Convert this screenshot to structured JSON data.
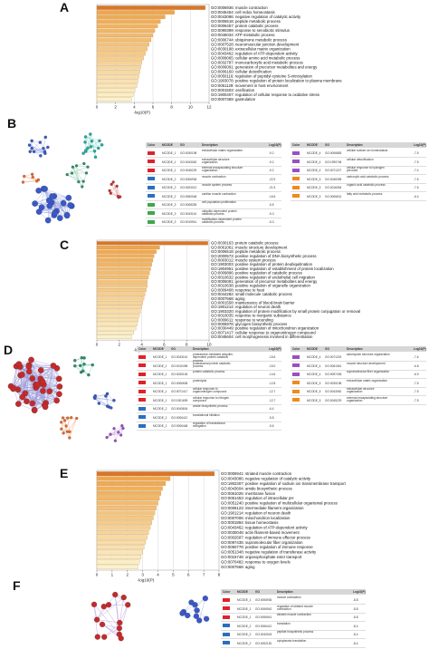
{
  "panels": {
    "A": {
      "letter": "A",
      "chart_data": {
        "type": "bar",
        "orientation": "horizontal",
        "xlabel": "-log10(P)",
        "xlim": [
          0,
          12
        ],
        "xticks": [
          0,
          2,
          4,
          6,
          8,
          10,
          12
        ],
        "categories": [
          "GO:0006936: muscle contraction",
          "GO:0045454: cell redox homeostasis",
          "GO:0043086: negative regulation of catalytic activity",
          "GO:0006518: peptide metabolic process",
          "GO:0006457: protein catabolic process",
          "GO:0090399: response to senobiotic stimulus",
          "GO:0046034: ATP metabolic process",
          "GO:0006744: ubiquinone metabolic process",
          "GO:0007528: neuromuscular junction development",
          "GO:0030198: extracellular matrix organization",
          "GO:0043462: regulation of ATP-dependent activity",
          "GO:0009065: cellular amino acid metabolic process",
          "GO:0032787: monocarboxylic acid metabolic process",
          "GO:0006091: generation of precursor metabolites and energy",
          "GO:0006160: cellular detoxification",
          "GO:0050116: regulation of peptidyl-cysteine S-nitrosylation",
          "GO:1903078: positive regulation of protein localization to plasma membrane",
          "GO:0051129: movement in host environment",
          "GO:0001503: ossification",
          "GO:1900407: regulation of cellular response to oxidative stress",
          "GO:0007369: gastrulation"
        ],
        "values": [
          11.6,
          8.3,
          7.3,
          6.8,
          6.5,
          6.2,
          6.0,
          5.8,
          5.6,
          5.4,
          5.2,
          5.0,
          4.8,
          4.7,
          4.6,
          4.5,
          4.4,
          4.3,
          4.1,
          3.9,
          3.7
        ],
        "grid": true
      },
      "network": {
        "node_colors": [
          "#3a58c8",
          "#3a58c8",
          "#20b0a0",
          "#2e8f6e",
          "#e86a2c",
          "#c43030"
        ]
      },
      "table": {
        "headers": [
          "Color",
          "MCODE",
          "GO",
          "Description",
          "Log10(P)"
        ],
        "rows_left": [
          {
            "color": "#e0222a",
            "mcode": "MCODE_1",
            "go": "GO:0030198",
            "desc": "extracellular matrix organization",
            "logp": "-9.2"
          },
          {
            "color": "#e0222a",
            "mcode": "MCODE_1",
            "go": "GO:0043062",
            "desc": "extracellular structure organization",
            "logp": "-9.2"
          },
          {
            "color": "#e0222a",
            "mcode": "MCODE_1",
            "go": "GO:0045229",
            "desc": "external encapsulating structure organization",
            "logp": "-9.2"
          },
          {
            "color": "#2a6fbf",
            "mcode": "MCODE_2",
            "go": "GO:0006936",
            "desc": "muscle contraction",
            "logp": "-22.9"
          },
          {
            "color": "#2a6fbf",
            "mcode": "MCODE_2",
            "go": "GO:0003012",
            "desc": "muscle system process",
            "logp": "-21.5"
          },
          {
            "color": "#2a6fbf",
            "mcode": "MCODE_2",
            "go": "GO:0060048",
            "desc": "cardiac muscle contraction",
            "logp": "-16.6"
          },
          {
            "color": "#3fa84a",
            "mcode": "MCODE_3",
            "go": "GO:0008283",
            "desc": "cell population proliferation",
            "logp": "-5.5"
          },
          {
            "color": "#3fa84a",
            "mcode": "MCODE_3",
            "go": "GO:0043161",
            "desc": "ubiquitin-dependent protein catabolic process",
            "logp": "-5.3"
          },
          {
            "color": "#3fa84a",
            "mcode": "MCODE_3",
            "go": "GO:0019941",
            "desc": "modification-dependent protein catabolic process",
            "logp": "-5.3"
          }
        ],
        "rows_right": [
          {
            "color": "#9b4fc0",
            "mcode": "MCODE_4",
            "go": "GO:0006883",
            "desc": "cellular sodium ion homeostasis",
            "logp": "-7.5"
          },
          {
            "color": "#9b4fc0",
            "mcode": "MCODE_4",
            "go": "GO:1990748",
            "desc": "cellular detoxification",
            "logp": "-7.5"
          },
          {
            "color": "#9b4fc0",
            "mcode": "MCODE_4",
            "go": "GO:0071227",
            "desc": "cellular response to hydrogen peroxide",
            "logp": "-7.4"
          },
          {
            "color": "#f08a1c",
            "mcode": "MCODE_5",
            "go": "GO:0046395",
            "desc": "carboxylic acid catabolic process",
            "logp": "-7.6"
          },
          {
            "color": "#f08a1c",
            "mcode": "MCODE_5",
            "go": "GO:0016054",
            "desc": "organic acid catabolic process",
            "logp": "-7.6"
          },
          {
            "color": "#f08a1c",
            "mcode": "MCODE_5",
            "go": "GO:0006631",
            "desc": "fatty acid metabolic process",
            "logp": "-6.4"
          }
        ]
      }
    },
    "C": {
      "letter": "C",
      "chart_data": {
        "type": "bar",
        "orientation": "horizontal",
        "xlabel": "-log10(P)",
        "xlim": [
          0,
          10
        ],
        "xticks": [
          0,
          2,
          4,
          6,
          8,
          10
        ],
        "categories": [
          "GO:0030163: protein catabolic process",
          "GO:0061061: muscle structure development",
          "GO:0006518: peptide metabolic process",
          "GO:2000573: positive regulation of DNA biosynthetic process",
          "GO:0003012: muscle system process",
          "GO:1903003: positive regulation of protein deubiquitination",
          "GO:1904951: positive regulation of establishment of protein localization",
          "GO:0009896: positive regulation of catabolic process",
          "GO:0010632: positive regulation of endothelial cell migration",
          "GO:0006091: generation of precursor metabolites and energy",
          "GO:0010638: positive regulation of organelle organization",
          "GO:0009408: response to heat",
          "GO:0044282: small molecule catabolic process",
          "GO:0007568: aging",
          "GO:0001558: maintenance of blood-brain barrier",
          "GO:1901214: regulation of neuron death",
          "GO:1903320: regulation of protein modification by small protein conjugation or removal",
          "GO:0010035: response to inorganic substance",
          "GO:0009611: response to wounding",
          "GO:0005978: glycogen biosynthetic process",
          "GO:0030449: positive regulation of mitochondrion organization",
          "GO:0071417: cellular response to organonitrogen compound",
          "GO:0045604: cell morphogenesis involved in differentiation"
        ],
        "values": [
          9.9,
          5.6,
          5.3,
          5.1,
          5.0,
          4.9,
          4.8,
          4.7,
          4.6,
          4.5,
          4.5,
          4.4,
          4.3,
          4.2,
          4.1,
          4.0,
          3.9,
          3.8,
          3.7,
          3.6,
          3.5,
          3.3,
          3.1
        ],
        "grid": true
      }
    },
    "D": {
      "letter": "D",
      "network": {
        "node_colors": [
          "#c42a2a",
          "#3a58c8",
          "#2e8f6e",
          "#e86a2c",
          "#9b4fc0"
        ]
      },
      "table": {
        "headers": [
          "Color",
          "MCODE",
          "GO",
          "Description",
          "Log10(P)"
        ],
        "rows_left": [
          {
            "color": "#e0222a",
            "mcode": "MCODE_1",
            "go": "GO:0043161",
            "desc": "proteasome-mediated ubiquitin-dependent protein catabolic process",
            "logp": "-15.6"
          },
          {
            "color": "#e0222a",
            "mcode": "MCODE_1",
            "go": "GO:0010498",
            "desc": "proteasomal protein catabolic process",
            "logp": "-15.0"
          },
          {
            "color": "#e0222a",
            "mcode": "MCODE_1",
            "go": "GO:0030163",
            "desc": "protein catabolic process",
            "logp": "-14.6"
          },
          {
            "color": "#e0222a",
            "mcode": "MCODE_1",
            "go": "GO:0006508",
            "desc": "proteolysis",
            "logp": "-12.8"
          },
          {
            "color": "#e0222a",
            "mcode": "MCODE_1",
            "go": "GO:0071417",
            "desc": "cellular response to organonitrogen compound",
            "logp": "-12.7"
          },
          {
            "color": "#e0222a",
            "mcode": "MCODE_1",
            "go": "GO:1901699",
            "desc": "cellular response to nitrogen compound",
            "logp": "-12.7"
          },
          {
            "color": "#2a6fbf",
            "mcode": "MCODE_2",
            "go": "GO:0043604",
            "desc": "amide biosynthetic process",
            "logp": "-6.4"
          },
          {
            "color": "#2a6fbf",
            "mcode": "MCODE_2",
            "go": "GO:0006412",
            "desc": "translational initiation",
            "logp": "-5.8"
          },
          {
            "color": "#2a6fbf",
            "mcode": "MCODE_2",
            "go": "GO:0006448",
            "desc": "regulation of translational elongation",
            "logp": "-5.6"
          }
        ],
        "rows_right": [
          {
            "color": "#9b4fc0",
            "mcode": "MCODE_4",
            "go": "GO:0071202",
            "desc": "actomyosin structure organization",
            "logp": "-7.6"
          },
          {
            "color": "#9b4fc0",
            "mcode": "MCODE_4",
            "go": "GO:0061061",
            "desc": "muscle structure development",
            "logp": "-6.8"
          },
          {
            "color": "#9b4fc0",
            "mcode": "MCODE_4",
            "go": "GO:0097435",
            "desc": "supramolecular fiber organization",
            "logp": "-6.9"
          },
          {
            "color": "#f08a1c",
            "mcode": "MCODE_5",
            "go": "GO:0030198",
            "desc": "extracellular matrix organization",
            "logp": "-7.5"
          },
          {
            "color": "#f08a1c",
            "mcode": "MCODE_5",
            "go": "GO:0043062",
            "desc": "extracellular structure organization",
            "logp": "-7.5"
          },
          {
            "color": "#f08a1c",
            "mcode": "MCODE_5",
            "go": "GO:0045229",
            "desc": "external encapsulating structure organization",
            "logp": "-7.5"
          }
        ]
      }
    },
    "E": {
      "letter": "E",
      "chart_data": {
        "type": "bar",
        "orientation": "horizontal",
        "xlabel": "-log10(P)",
        "xlim": [
          0,
          8
        ],
        "xticks": [
          0,
          1,
          2,
          3,
          4,
          5,
          6,
          7,
          8
        ],
        "categories": [
          "GO:0006941: striated muscle contraction",
          "GO:0043086: negative regulation of catalytic activity",
          "GO:1902307: positive regulation of sodium ion transmembrane transport",
          "GO:0043604: amide biosynthetic process",
          "GO:0061025: membrane fusion",
          "GO:0051453: regulation of intracellular pH",
          "GO:0051240: positive regulation of multicellular organismal process",
          "GO:0006123: intermediate filament organization",
          "GO:1901214: regulation of neuron death",
          "GO:0007006: mitochondrion localization",
          "GO:0001894: tissue homeostasis",
          "GO:0043462: regulation of ATP-dependent activity",
          "GO:0030048: actin filament-based movement",
          "GO:0002697: regulation of immune effector process",
          "GO:0097435: supramolecular fiber organization",
          "GO:0050778: positive regulation of immune response",
          "GO:0051348: negative regulation of transferase activity",
          "GO:0015748: organophosphate ester transport",
          "GO:0070482: response to oxygen levels",
          "GO:0007568: aging"
        ],
        "values": [
          7.7,
          4.8,
          4.5,
          4.3,
          4.2,
          4.1,
          4.0,
          3.9,
          3.8,
          3.7,
          3.6,
          3.5,
          3.4,
          3.3,
          3.2,
          3.1,
          3.0,
          2.9,
          2.8,
          2.7
        ],
        "grid": true
      }
    },
    "F": {
      "letter": "F",
      "network": {
        "node_colors": [
          "#c42a2a",
          "#3a58c8"
        ]
      },
      "table": {
        "headers": [
          "Color",
          "MCODE",
          "GO",
          "Description",
          "Log10(P)"
        ],
        "rows_left": [
          {
            "color": "#e0222a",
            "mcode": "MCODE_1",
            "go": "GO:0006936",
            "desc": "muscle contraction",
            "logp": "-8.8"
          },
          {
            "color": "#e0222a",
            "mcode": "MCODE_1",
            "go": "GO:0006942",
            "desc": "regulation of striated muscle contraction",
            "logp": "-8.8"
          },
          {
            "color": "#e0222a",
            "mcode": "MCODE_1",
            "go": "GO:0006941",
            "desc": "striated muscle contraction",
            "logp": "-8.8"
          },
          {
            "color": "#2a6fbf",
            "mcode": "MCODE_2",
            "go": "GO:0006412",
            "desc": "translation",
            "logp": "-8.4"
          },
          {
            "color": "#2a6fbf",
            "mcode": "MCODE_2",
            "go": "GO:0043043",
            "desc": "peptide biosynthetic process",
            "logp": "-8.4"
          },
          {
            "color": "#2a6fbf",
            "mcode": "MCODE_2",
            "go": "GO:0002181",
            "desc": "cytoplasmic translation",
            "logp": "-8.4"
          }
        ]
      }
    }
  }
}
